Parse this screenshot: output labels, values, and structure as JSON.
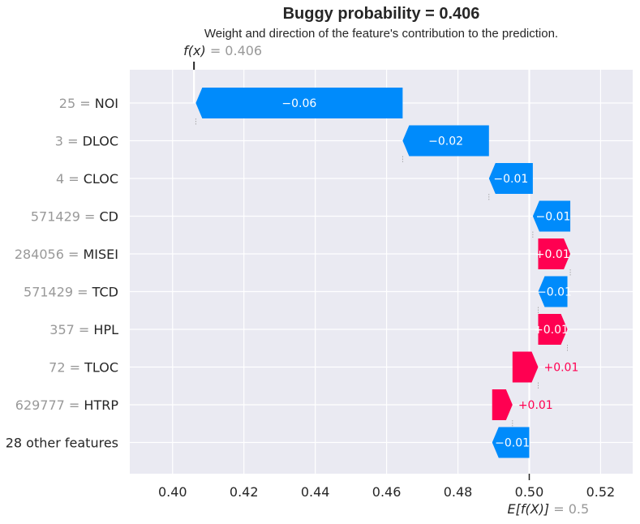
{
  "chart_data": {
    "type": "waterfall",
    "title": "Buggy probability = 0.406",
    "subtitle": "Weight and direction of the feature's contribution to the prediction.",
    "fx_label": "f(x)",
    "fx_value_text": "= 0.406",
    "base_label": "E[f(X)]",
    "base_value_text": "= 0.5",
    "fx": 0.406,
    "base": 0.5,
    "xlim": [
      0.388,
      0.529
    ],
    "xticks": [
      "0.40",
      "0.42",
      "0.44",
      "0.46",
      "0.48",
      "0.50",
      "0.52"
    ],
    "xtick_values": [
      0.4,
      0.42,
      0.44,
      0.46,
      0.48,
      0.5,
      0.52
    ],
    "grid": true,
    "colors": {
      "positive": "#ff0051",
      "negative": "#008bfb",
      "background": "#eaeaf2"
    },
    "features": [
      {
        "value": "25",
        "name": "NOI",
        "label": "−0.06",
        "start": 0.4645,
        "end": 0.4065
      },
      {
        "value": "3",
        "name": "DLOC",
        "label": "−0.02",
        "start": 0.4887,
        "end": 0.4645
      },
      {
        "value": "4",
        "name": "CLOC",
        "label": "−0.01",
        "start": 0.501,
        "end": 0.4887
      },
      {
        "value": "571429",
        "name": "CD",
        "label": "−0.01",
        "start": 0.5115,
        "end": 0.501
      },
      {
        "value": "284056",
        "name": "MISEI",
        "label": "+0.01",
        "start": 0.5025,
        "end": 0.5115
      },
      {
        "value": "571429",
        "name": "TCD",
        "label": "−0.01",
        "start": 0.5107,
        "end": 0.5025
      },
      {
        "value": "357",
        "name": "HPL",
        "label": "+0.01",
        "start": 0.5025,
        "end": 0.5107
      },
      {
        "value": "72",
        "name": "TLOC",
        "label": "+0.01",
        "start": 0.4953,
        "end": 0.5025
      },
      {
        "value": "629777",
        "name": "HTRP",
        "label": "+0.01",
        "start": 0.4896,
        "end": 0.4953
      },
      {
        "value": "",
        "name": "28 other features",
        "label": "−0.01",
        "start": 0.5,
        "end": 0.4896
      }
    ]
  }
}
